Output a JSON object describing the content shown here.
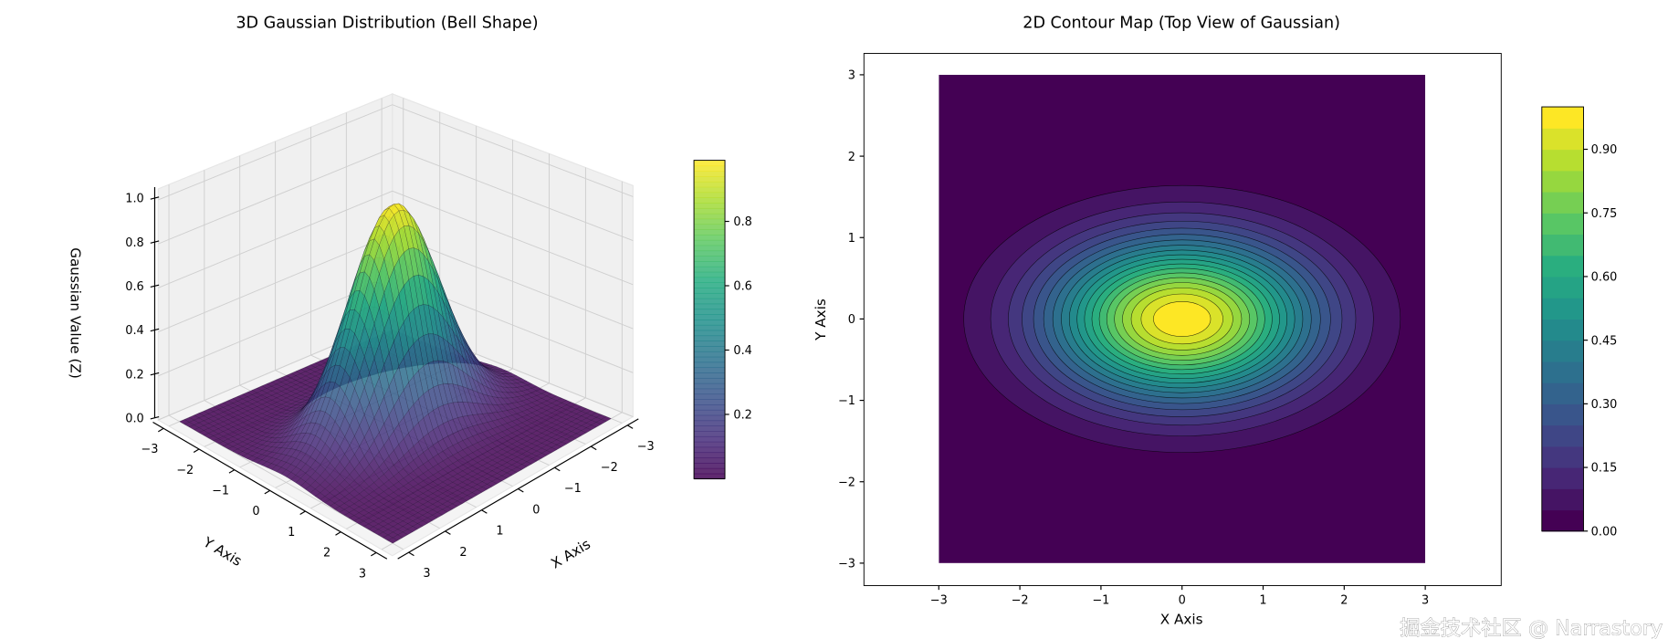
{
  "chart_data": [
    {
      "type": "surface3d",
      "title": "3D Gaussian Distribution (Bell Shape)",
      "xlabel": "X Axis",
      "ylabel": "Y Axis",
      "zlabel": "Gaussian Value (Z)",
      "function": "z = exp(-(x^2/(2*1.1^2) + y^2/(2*0.67^2)))",
      "x_range": [
        -3,
        3
      ],
      "y_range": [
        -3,
        3
      ],
      "zlim": [
        0,
        1.0
      ],
      "x_ticks": [
        "3",
        "2",
        "1",
        "0",
        "−1",
        "−2",
        "−3"
      ],
      "x_tick_values": [
        3,
        2,
        1,
        0,
        -1,
        -2,
        -3
      ],
      "y_ticks": [
        "−3",
        "−2",
        "−1",
        "0",
        "1",
        "2",
        "3"
      ],
      "y_tick_values": [
        -3,
        -2,
        -1,
        0,
        1,
        2,
        3
      ],
      "z_ticks": [
        "0.0",
        "0.2",
        "0.4",
        "0.6",
        "0.8",
        "1.0"
      ],
      "z_tick_values": [
        0,
        0.2,
        0.4,
        0.6,
        0.8,
        1.0
      ],
      "colormap": "viridis",
      "surface_alpha": 0.8,
      "colorbar": {
        "range": [
          0.0,
          0.99
        ],
        "ticks": [
          "0.2",
          "0.4",
          "0.6",
          "0.8"
        ],
        "tick_values": [
          0.2,
          0.4,
          0.6,
          0.8
        ]
      }
    },
    {
      "type": "contourf",
      "title": "2D Contour Map (Top View of Gaussian)",
      "xlabel": "X Axis",
      "ylabel": "Y Axis",
      "xlim": [
        -3.92,
        3.92
      ],
      "ylim": [
        -3.27,
        3.27
      ],
      "data_range": [
        -3,
        3
      ],
      "sigma_x": 1.1,
      "sigma_y": 0.67,
      "levels": 20,
      "level_step": 0.05,
      "x_ticks": [
        "−3",
        "−2",
        "−1",
        "0",
        "1",
        "2",
        "3"
      ],
      "x_tick_values": [
        -3,
        -2,
        -1,
        0,
        1,
        2,
        3
      ],
      "y_ticks": [
        "−3",
        "−2",
        "−1",
        "0",
        "1",
        "2",
        "3"
      ],
      "y_tick_values": [
        -3,
        -2,
        -1,
        0,
        1,
        2,
        3
      ],
      "colormap": "viridis",
      "colorbar": {
        "range": [
          0.0,
          1.0
        ],
        "ticks": [
          "0.00",
          "0.15",
          "0.30",
          "0.45",
          "0.60",
          "0.75",
          "0.90"
        ],
        "tick_values": [
          0,
          0.15,
          0.3,
          0.45,
          0.6,
          0.75,
          0.9
        ]
      }
    }
  ],
  "watermark": "掘金技术社区 @ Narrastory",
  "colors": {
    "viridis": [
      "#440154",
      "#472d7b",
      "#3b528b",
      "#2c728e",
      "#21918c",
      "#27ad81",
      "#5ec962",
      "#aadc32",
      "#fde725"
    ],
    "pane_wall": "#f0f0f0",
    "pane_floor": "#f4f4f4",
    "grid": "#cfcfcf"
  }
}
